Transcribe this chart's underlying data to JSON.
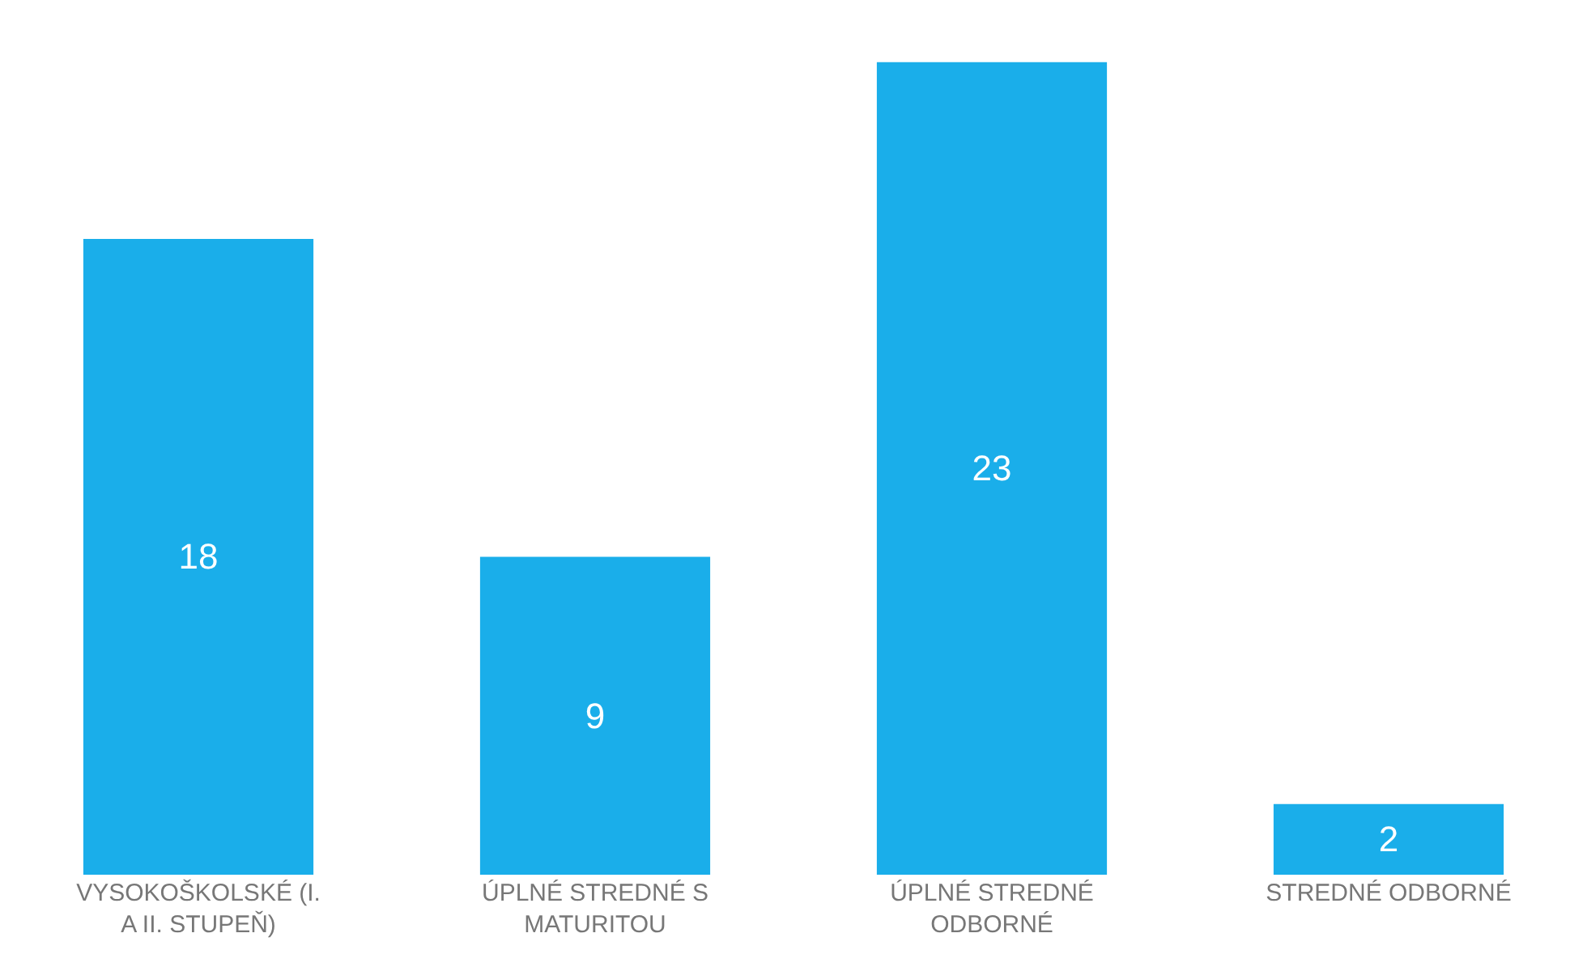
{
  "chart_data": {
    "type": "bar",
    "categories": [
      "VYSOKOŠKOLSKÉ (I. A II. STUPEŇ)",
      "ÚPLNÉ STREDNÉ S MATURITOU",
      "ÚPLNÉ STREDNÉ ODBORNÉ",
      "STREDNÉ ODBORNÉ"
    ],
    "values": [
      18,
      9,
      23,
      2
    ],
    "color": "#1aaeea",
    "data_labels": true,
    "grid": false,
    "legend": false
  }
}
